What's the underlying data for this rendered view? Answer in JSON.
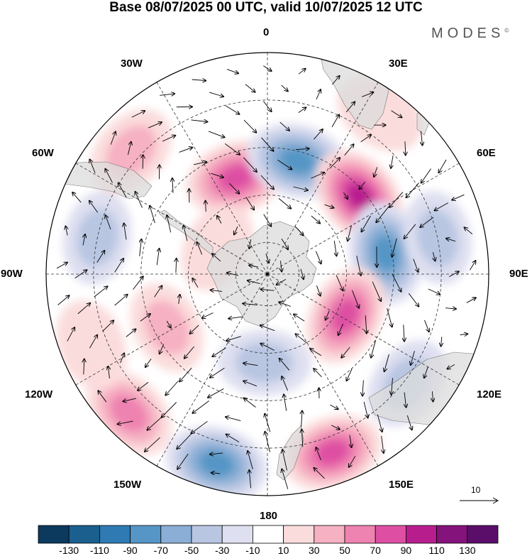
{
  "title": "Base 08/07/2025 00 UTC, valid 10/07/2025 12 UTC",
  "brand": "MODES",
  "brand_mark": "©",
  "lon_labels": [
    "0",
    "30E",
    "60E",
    "90E",
    "120E",
    "150E",
    "180",
    "150W",
    "120W",
    "90W",
    "60W",
    "30W"
  ],
  "reference_vector": "10",
  "colorbar": {
    "tick_labels": [
      "-130",
      "-110",
      "-90",
      "-70",
      "-50",
      "-30",
      "-10",
      "10",
      "30",
      "50",
      "70",
      "90",
      "110",
      "130"
    ],
    "colors": [
      "#0b3a5e",
      "#1a5f8e",
      "#2f7ab3",
      "#5596c6",
      "#8aaed5",
      "#b8c6e2",
      "#dedff0",
      "#ffffff",
      "#fbdcdc",
      "#f6b1c2",
      "#ee82b0",
      "#de4fa3",
      "#b81d8e",
      "#85137c",
      "#5a0e6a"
    ]
  },
  "anomaly_centers": [
    {
      "lon": -48,
      "colat": 58,
      "value": 45
    },
    {
      "lon": -18,
      "colat": 32,
      "value": 85
    },
    {
      "lon": 15,
      "colat": 37,
      "value": -90
    },
    {
      "lon": 50,
      "colat": 38,
      "value": 100
    },
    {
      "lon": 80,
      "colat": 38,
      "value": -90
    },
    {
      "lon": 78,
      "colat": 55,
      "value": -40
    },
    {
      "lon": 118,
      "colat": 28,
      "value": 80
    },
    {
      "lon": 128,
      "colat": 56,
      "value": -45
    },
    {
      "lon": 160,
      "colat": 60,
      "value": 80
    },
    {
      "lon": -165,
      "colat": 62,
      "value": -90
    },
    {
      "lon": -178,
      "colat": 28,
      "value": -35
    },
    {
      "lon": -135,
      "colat": 62,
      "value": 60
    },
    {
      "lon": -118,
      "colat": 36,
      "value": 35
    },
    {
      "lon": -78,
      "colat": 55,
      "value": -40
    },
    {
      "lon": -112,
      "colat": 60,
      "value": 30
    },
    {
      "lon": -62,
      "colat": 18,
      "value": 25
    },
    {
      "lon": 35,
      "colat": 62,
      "value": 30
    }
  ],
  "wind_field": {
    "step_deg": 9
  }
}
